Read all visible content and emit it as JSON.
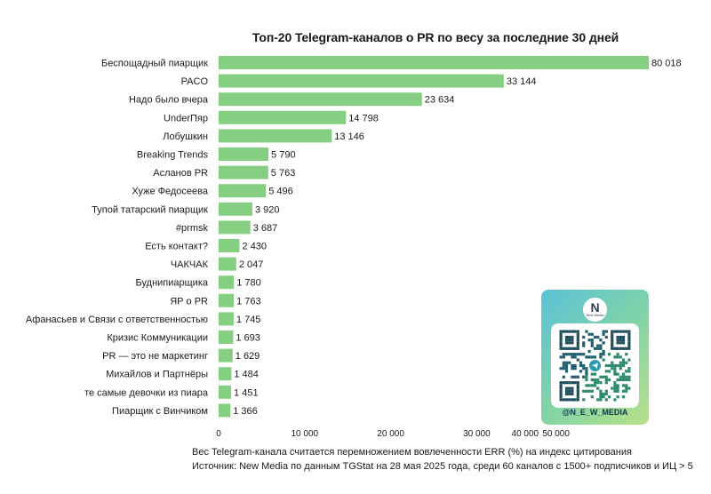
{
  "chart_data": {
    "type": "bar",
    "orientation": "horizontal",
    "title": "Топ-20 Telegram-каналов о PR по весу за последние 30 дней",
    "categories": [
      "Беспощадный пиарщик",
      "PACO",
      "Надо было вчера",
      "UnderПяр",
      "Лобушкин",
      "Breaking Trends",
      "Асланов PR",
      "Хуже Федосеева",
      "Тупой татарский пиарщик",
      "#prmsk",
      "Есть контакт?",
      "ЧАКЧАК",
      "Буднипиарщика",
      "ЯР о PR",
      "Афанасьев и Связи с ответственностью",
      "Кризис Коммуникации",
      "PR — это не маркетинг",
      "Михайлов и Партнёры",
      "те самые девочки из пиара",
      "Пиарщик с Винчиком"
    ],
    "values": [
      80018,
      33144,
      23634,
      14798,
      13146,
      5790,
      5763,
      5496,
      3920,
      3687,
      2430,
      2047,
      1780,
      1763,
      1745,
      1693,
      1629,
      1484,
      1451,
      1366
    ],
    "value_labels": [
      "80 018",
      "33 144",
      "23 634",
      "14 798",
      "13 146",
      "5 790",
      "5 763",
      "5 496",
      "3 920",
      "3 687",
      "2 430",
      "2 047",
      "1 780",
      "1 763",
      "1 745",
      "1 693",
      "1 629",
      "1 484",
      "1 451",
      "1 366"
    ],
    "xlim": [
      0,
      50000
    ],
    "x_scale_note": "axis appears non-linear at the top end",
    "x_ticks": [
      0,
      10000,
      20000,
      30000,
      40000,
      50000
    ],
    "x_tick_labels": [
      "0",
      "10 000",
      "20 000",
      "30 000",
      "40 000",
      "50 000"
    ],
    "grid": false,
    "bar_color": "#86cf82"
  },
  "footnotes": {
    "line1": "Вес Telegram-канала считается перемножением вовлеченности ERR (%) на индекс цитирования",
    "line2": "Источник: New Media по данным TGStat на 28 мая 2025 года, среди 60 каналов с 1500+ подписчиков и ИЦ > 5"
  },
  "qr_card": {
    "logo_letter": "N",
    "logo_text": "New Media",
    "handle": "@N_E_W_MEDIA",
    "icon": "qr-code-icon"
  }
}
